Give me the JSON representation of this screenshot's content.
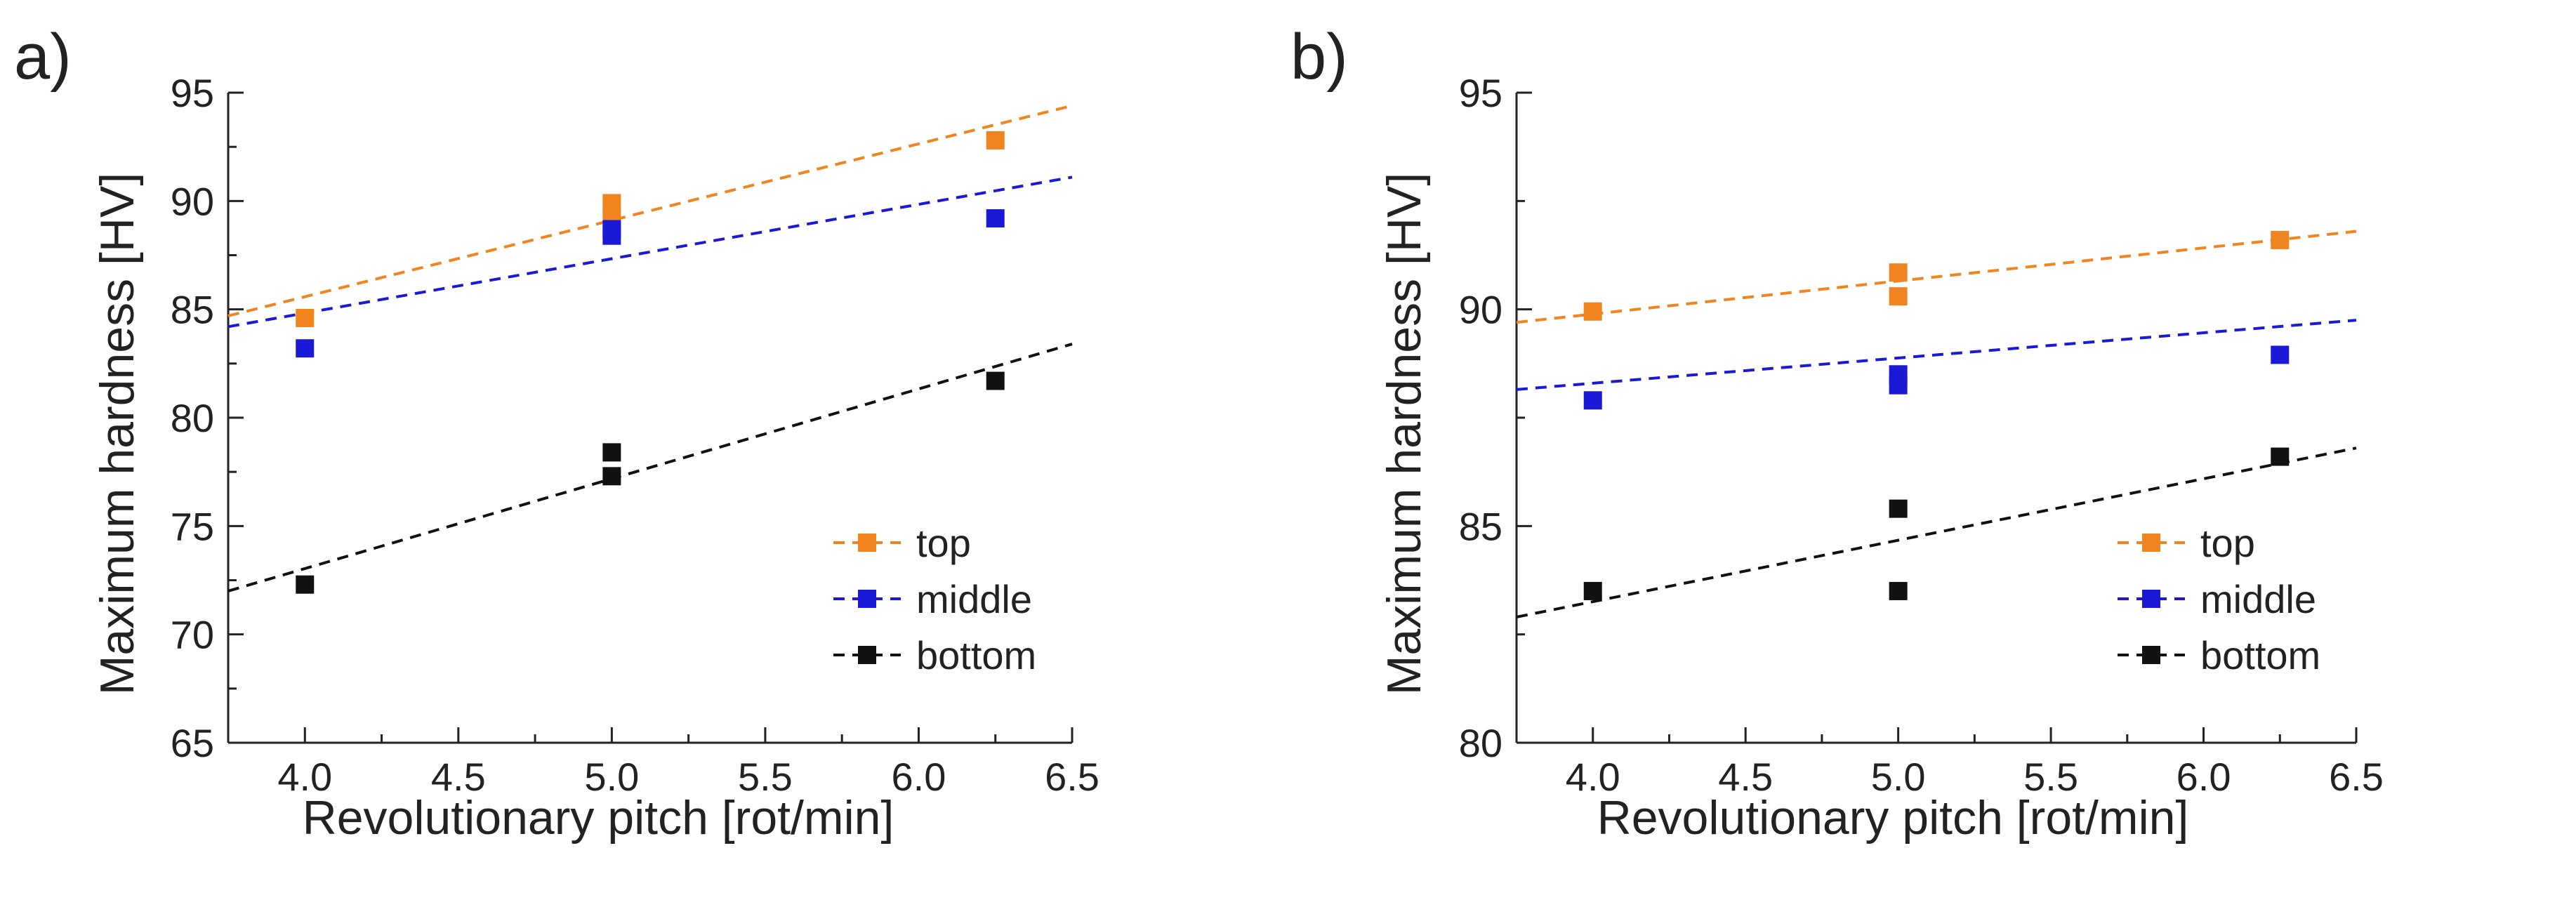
{
  "chart_data": [
    {
      "type": "scatter",
      "panel_label": "a)",
      "xlabel": "Revolutionary pitch [rot/min]",
      "ylabel": "Maximum hardness [HV]",
      "xlim": [
        3.75,
        6.5
      ],
      "ylim": [
        65,
        95
      ],
      "xticks": [
        "4.0",
        "4.5",
        "5.0",
        "5.5",
        "6.0",
        "6.5"
      ],
      "yticks": [
        "65",
        "70",
        "75",
        "80",
        "85",
        "90",
        "95"
      ],
      "legend_position": "bottom-right",
      "grid": false,
      "series": [
        {
          "name": "top",
          "color": "#f0841f",
          "points": [
            [
              4.0,
              84.6
            ],
            [
              5.0,
              89.9
            ],
            [
              5.0,
              89.2
            ],
            [
              6.25,
              92.8
            ]
          ],
          "trend": {
            "x": [
              3.75,
              6.5
            ],
            "y": [
              84.7,
              94.4
            ]
          }
        },
        {
          "name": "middle",
          "color": "#1a1ad6",
          "points": [
            [
              4.0,
              83.2
            ],
            [
              5.0,
              88.7
            ],
            [
              5.0,
              88.4
            ],
            [
              6.25,
              89.2
            ]
          ],
          "trend": {
            "x": [
              3.75,
              6.5
            ],
            "y": [
              84.2,
              91.1
            ]
          }
        },
        {
          "name": "bottom",
          "color": "#111111",
          "points": [
            [
              4.0,
              72.3
            ],
            [
              5.0,
              78.4
            ],
            [
              5.0,
              77.3
            ],
            [
              6.25,
              81.7
            ]
          ],
          "trend": {
            "x": [
              3.75,
              6.5
            ],
            "y": [
              72.0,
              83.4
            ]
          }
        }
      ]
    },
    {
      "type": "scatter",
      "panel_label": "b)",
      "xlabel": "Revolutionary pitch [rot/min]",
      "ylabel": "Maximum hardness [HV]",
      "xlim": [
        3.75,
        6.5
      ],
      "ylim": [
        80,
        95
      ],
      "xticks": [
        "4.0",
        "4.5",
        "5.0",
        "5.5",
        "6.0",
        "6.5"
      ],
      "yticks": [
        "80",
        "85",
        "90",
        "95"
      ],
      "legend_position": "bottom-right",
      "grid": false,
      "series": [
        {
          "name": "top",
          "color": "#f0841f",
          "points": [
            [
              4.0,
              89.95
            ],
            [
              5.0,
              90.85
            ],
            [
              5.0,
              90.3
            ],
            [
              6.25,
              91.6
            ]
          ],
          "trend": {
            "x": [
              3.75,
              6.5
            ],
            "y": [
              89.7,
              91.8
            ]
          }
        },
        {
          "name": "middle",
          "color": "#1a1ad6",
          "points": [
            [
              4.0,
              87.9
            ],
            [
              5.0,
              88.5
            ],
            [
              5.0,
              88.25
            ],
            [
              6.25,
              88.95
            ]
          ],
          "trend": {
            "x": [
              3.75,
              6.5
            ],
            "y": [
              88.15,
              89.75
            ]
          }
        },
        {
          "name": "bottom",
          "color": "#111111",
          "points": [
            [
              4.0,
              83.5
            ],
            [
              5.0,
              85.4
            ],
            [
              5.0,
              83.5
            ],
            [
              6.25,
              86.6
            ]
          ],
          "trend": {
            "x": [
              3.75,
              6.5
            ],
            "y": [
              82.9,
              86.8
            ]
          }
        }
      ]
    }
  ]
}
